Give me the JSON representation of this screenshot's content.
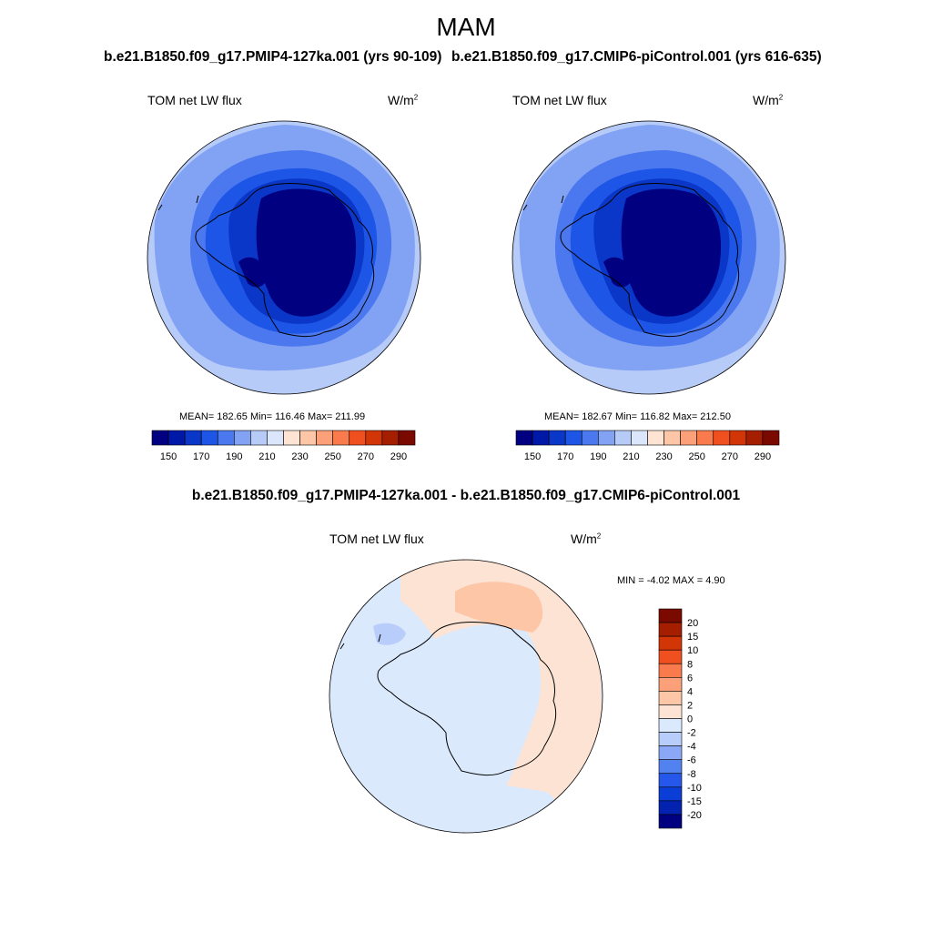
{
  "season": "MAM",
  "run1_title": "b.e21.B1850.f09_g17.PMIP4-127ka.001 (yrs 90-109)",
  "run2_title": "b.e21.B1850.f09_g17.CMIP6-piControl.001 (yrs 616-635)",
  "diff_title": "b.e21.B1850.f09_g17.PMIP4-127ka.001 - b.e21.B1850.f09_g17.CMIP6-piControl.001",
  "panel_left": {
    "variable": "TOM net LW flux",
    "units_base": "W/m",
    "units_exp": "2",
    "stats": "MEAN= 182.65  Min= 116.46  Max= 211.99"
  },
  "panel_right": {
    "variable": "TOM net LW flux",
    "units_base": "W/m",
    "units_exp": "2",
    "stats": "MEAN= 182.67  Min= 116.82  Max= 212.50"
  },
  "panel_diff": {
    "variable": "TOM net LW flux",
    "units_base": "W/m",
    "units_exp": "2",
    "stats": "MIN =  -4.02 MAX =   4.90"
  },
  "abs_colorbar": {
    "colors": [
      "#000080",
      "#0018a8",
      "#0a37c8",
      "#1d56e6",
      "#4b78ee",
      "#82a2f4",
      "#b7cbf9",
      "#dbe6fc",
      "#ffe3d3",
      "#fdc6a7",
      "#fba078",
      "#f97a4c",
      "#f0501f",
      "#d23506",
      "#a61e00",
      "#7a0a00"
    ],
    "tick_labels": [
      "150",
      "170",
      "190",
      "210",
      "230",
      "250",
      "270",
      "290"
    ]
  },
  "diff_colorbar": {
    "colors": [
      "#000080",
      "#0422b0",
      "#0b3ed6",
      "#2558ea",
      "#5282f0",
      "#8aa8f5",
      "#b8cdf9",
      "#dbe9fd",
      "#fde3d3",
      "#fdc6a7",
      "#fba078",
      "#f97a4c",
      "#f0501f",
      "#d23506",
      "#a61e00",
      "#7a0a00"
    ],
    "tick_labels": [
      "20",
      "15",
      "10",
      "8",
      "6",
      "4",
      "2",
      "0",
      "-2",
      "-4",
      "-6",
      "-8",
      "-10",
      "-15",
      "-20"
    ]
  }
}
